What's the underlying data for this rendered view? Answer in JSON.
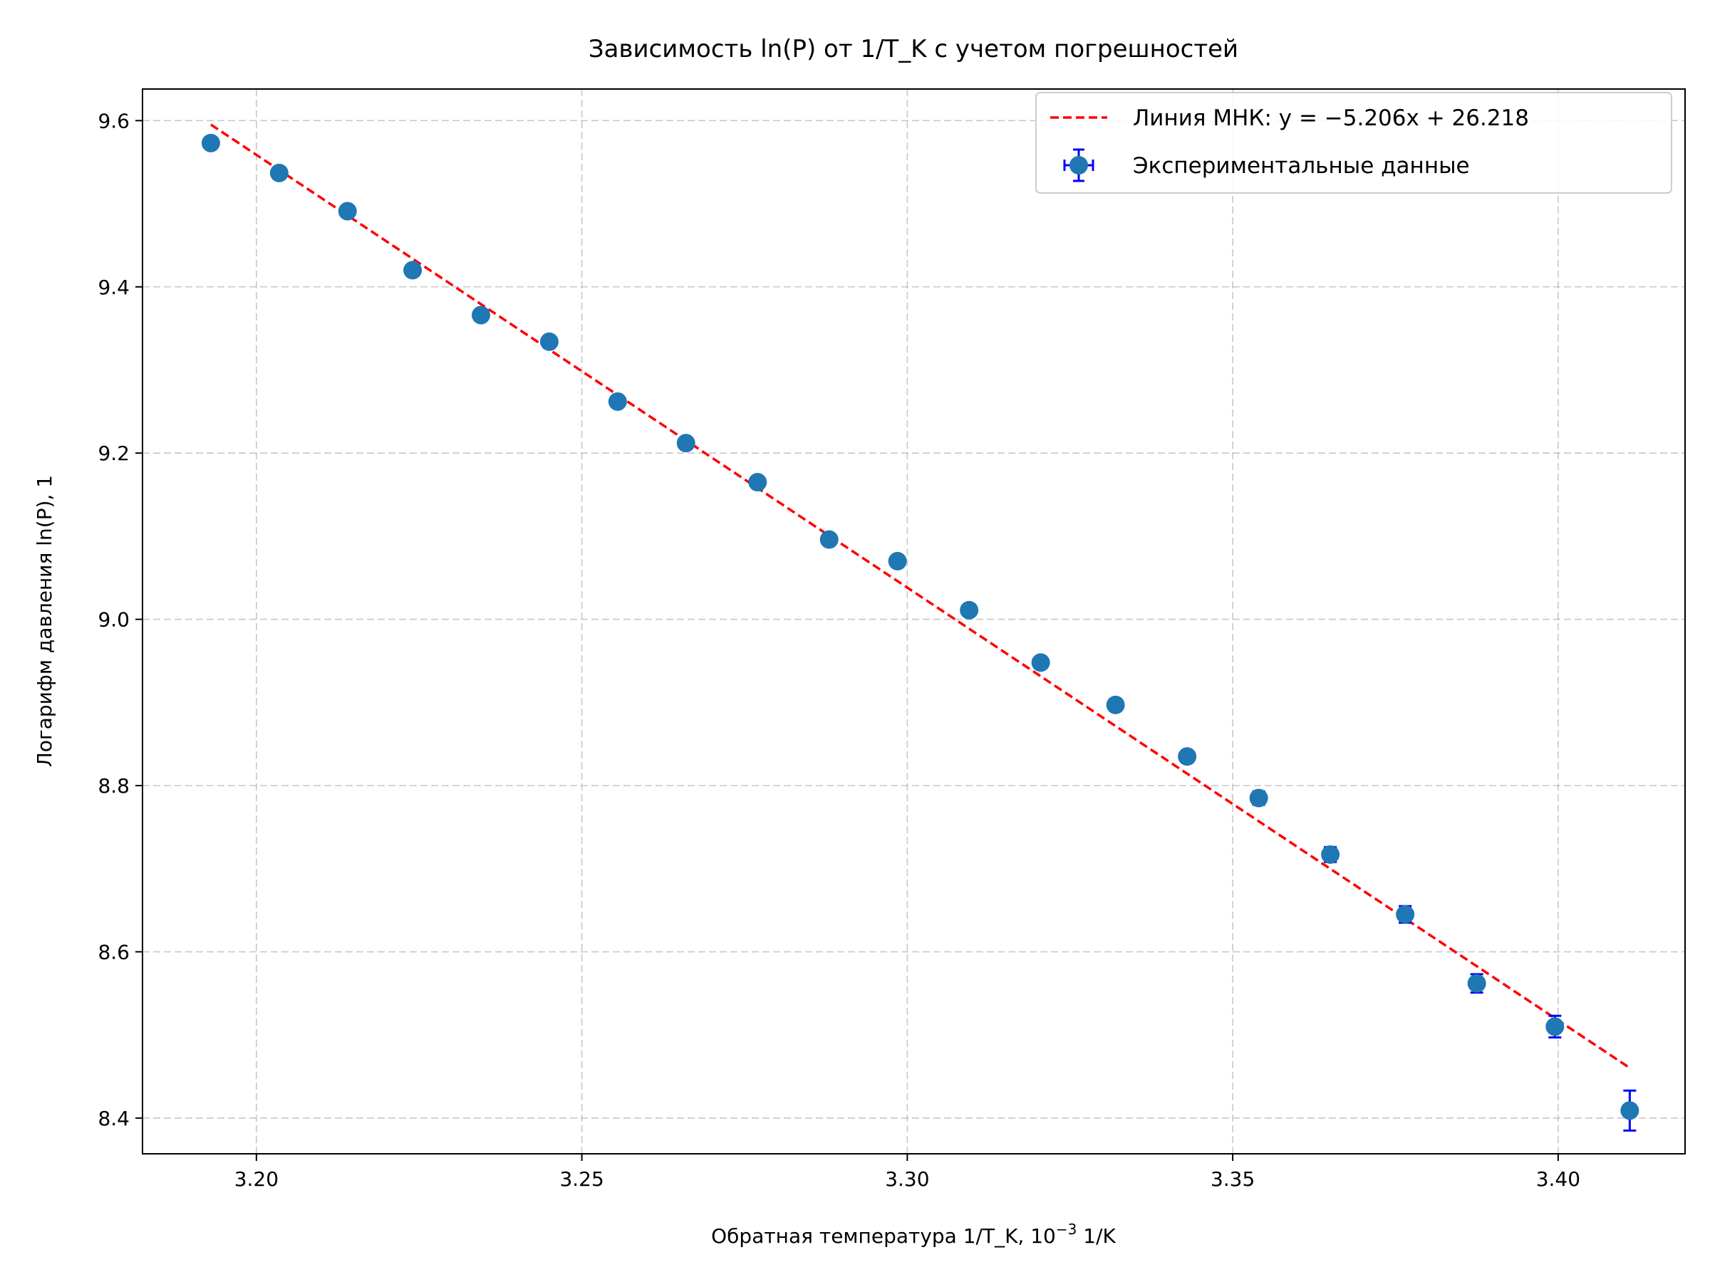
{
  "chart_data": {
    "type": "scatter",
    "title": "Зависимость ln(P) от 1/T_K с учетом погрешностей",
    "xlabel_main": "Обратная температура 1/T_K, 10",
    "xlabel_sup": "−3",
    "xlabel_tail": " 1/K",
    "ylabel": "Логарифм давления ln(P), 1",
    "xlim": [
      3.1825,
      3.4195
    ],
    "ylim": [
      8.357,
      9.638
    ],
    "x_ticks": [
      3.2,
      3.25,
      3.3,
      3.35,
      3.4
    ],
    "x_tick_labels": [
      "3.20",
      "3.25",
      "3.30",
      "3.35",
      "3.40"
    ],
    "y_ticks": [
      8.4,
      8.6,
      8.8,
      9.0,
      9.2,
      9.4,
      9.6
    ],
    "y_tick_labels": [
      "8.4",
      "8.6",
      "8.8",
      "9.0",
      "9.2",
      "9.4",
      "9.6"
    ],
    "grid": true,
    "legend_position": "top-right",
    "colors": {
      "points": "#1f77b4",
      "errorbars": "#0000ff",
      "fit": "#ff0000",
      "grid": "#b0b0b0"
    },
    "fit": {
      "name": "Линия МНК: ",
      "equation": "y = −5.206x + 26.218",
      "slope": -5.206,
      "intercept": 26.218,
      "x_start": 3.193,
      "x_end": 3.411
    },
    "series": [
      {
        "name": "Экспериментальные данные",
        "x": [
          3.193,
          3.2035,
          3.214,
          3.224,
          3.2345,
          3.245,
          3.2555,
          3.266,
          3.277,
          3.288,
          3.2985,
          3.3095,
          3.3205,
          3.332,
          3.343,
          3.354,
          3.365,
          3.3765,
          3.3875,
          3.3995,
          3.411
        ],
        "y": [
          9.573,
          9.537,
          9.491,
          9.42,
          9.366,
          9.334,
          9.262,
          9.212,
          9.165,
          9.096,
          9.07,
          9.011,
          8.948,
          8.897,
          8.835,
          8.785,
          8.717,
          8.645,
          8.562,
          8.51,
          8.409
        ],
        "yerr": [
          0.002,
          0.002,
          0.002,
          0.002,
          0.003,
          0.003,
          0.003,
          0.003,
          0.004,
          0.004,
          0.004,
          0.005,
          0.006,
          0.007,
          0.007,
          0.008,
          0.009,
          0.01,
          0.011,
          0.013,
          0.024
        ]
      }
    ]
  }
}
